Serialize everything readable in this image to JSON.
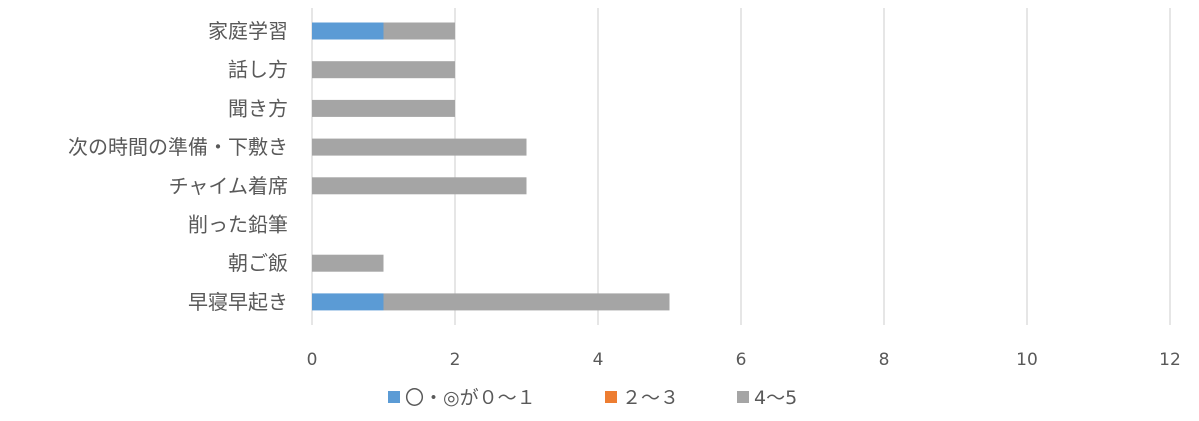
{
  "chart_data": {
    "type": "bar",
    "orientation": "horizontal",
    "stacked": true,
    "categories": [
      "家庭学習",
      "話し方",
      "聞き方",
      "次の時間の準備・下敷き",
      "チャイム着席",
      "削った鉛筆",
      "朝ご飯",
      "早寝早起き"
    ],
    "series": [
      {
        "name": "〇・◎が０～１",
        "color": "#5B9BD5",
        "values": [
          1,
          0,
          0,
          0,
          0,
          0,
          0,
          1
        ]
      },
      {
        "name": "２～３",
        "color": "#ED7D31",
        "values": [
          0,
          0,
          0,
          0,
          0,
          0,
          0,
          0
        ]
      },
      {
        "name": "4〜5",
        "color": "#A5A5A5",
        "values": [
          1,
          2,
          2,
          3,
          3,
          0,
          1,
          4
        ]
      }
    ],
    "xlim": [
      0,
      12
    ],
    "xticks": [
      "0",
      "2",
      "4",
      "6",
      "8",
      "10",
      "12"
    ],
    "grid": true,
    "legend_position": "bottom"
  }
}
